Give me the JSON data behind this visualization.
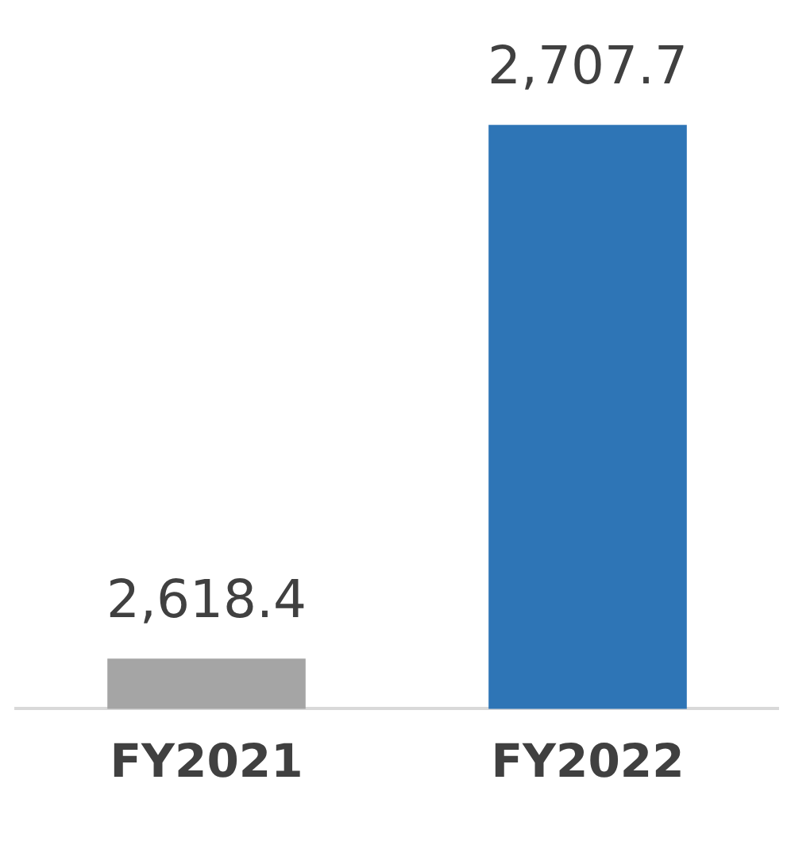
{
  "chart_data": {
    "type": "bar",
    "categories": [
      "FY2021",
      "FY2022"
    ],
    "values": [
      2618.4,
      2707.7
    ],
    "colors": [
      "#a5a5a5",
      "#2e75b6"
    ],
    "value_labels": [
      "2,618.4",
      "2,707.7"
    ],
    "tick_labels": "x",
    "grid": false,
    "legend": false
  }
}
